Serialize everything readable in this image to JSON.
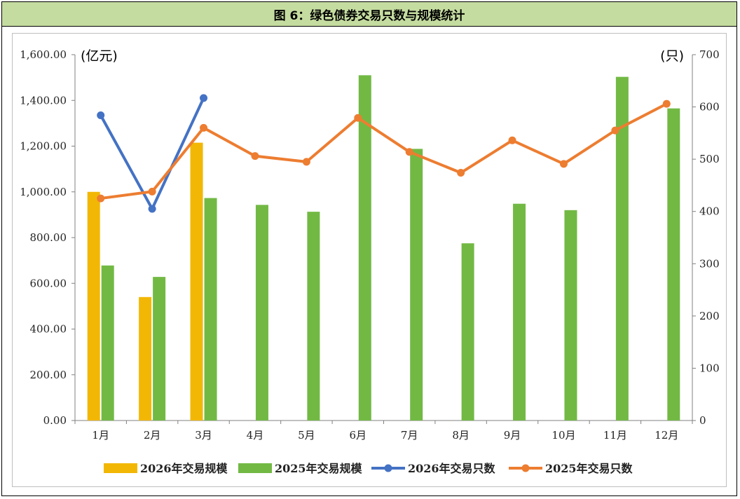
{
  "figure_title": "图 6：绿色债券交易只数与规模统计",
  "chart_data": {
    "type": "bar+line",
    "categories": [
      "1月",
      "2月",
      "3月",
      "4月",
      "5月",
      "6月",
      "7月",
      "8月",
      "9月",
      "10月",
      "11月",
      "12月"
    ],
    "left_axis": {
      "unit": "(亿元)",
      "ylim": [
        0,
        1600
      ],
      "ticks": [
        "0.00",
        "200.00",
        "400.00",
        "600.00",
        "800.00",
        "1,000.00",
        "1,200.00",
        "1,400.00",
        "1,600.00"
      ]
    },
    "right_axis": {
      "unit": "(只)",
      "ylim": [
        0,
        700
      ],
      "ticks": [
        "0",
        "100",
        "200",
        "300",
        "400",
        "500",
        "600",
        "700"
      ]
    },
    "bar_series": [
      {
        "name": "2026年交易规模",
        "color": "#f2b705",
        "values": [
          1000,
          540,
          1215,
          null,
          null,
          null,
          null,
          null,
          null,
          null,
          null,
          null
        ]
      },
      {
        "name": "2025年交易规模",
        "color": "#72b944",
        "values": [
          678,
          628,
          973,
          943,
          913,
          1510,
          1188,
          775,
          948,
          920,
          1503,
          1365
        ]
      }
    ],
    "line_series": [
      {
        "name": "2026年交易只数",
        "color": "#4472c4",
        "values": [
          584,
          405,
          617,
          null,
          null,
          null,
          null,
          null,
          null,
          null,
          null,
          null
        ]
      },
      {
        "name": "2025年交易只数",
        "color": "#ed7d31",
        "values": [
          425,
          438,
          560,
          506,
          495,
          579,
          514,
          474,
          536,
          491,
          555,
          606
        ]
      }
    ],
    "grid": false,
    "legend_position": "bottom"
  }
}
